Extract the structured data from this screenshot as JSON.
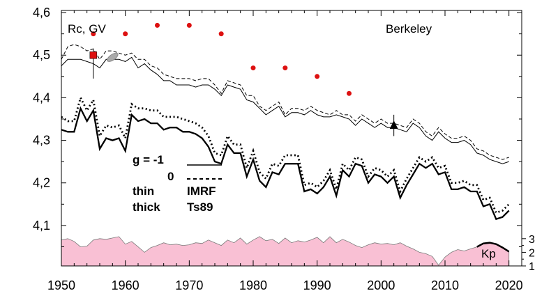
{
  "chart_data": {
    "type": "line",
    "title": "Berkeley",
    "ylabel": "Rc, GV",
    "xlim": [
      1950,
      2022
    ],
    "ylim": [
      4.005,
      4.605
    ],
    "x_ticks": [
      1950,
      1960,
      1970,
      1980,
      1990,
      2000,
      2010,
      2020
    ],
    "y_ticks": [
      {
        "value": 4.1,
        "label": "4,1"
      },
      {
        "value": 4.2,
        "label": "4,2"
      },
      {
        "value": 4.3,
        "label": "4,3"
      },
      {
        "value": 4.4,
        "label": "4,4"
      },
      {
        "value": 4.5,
        "label": "4,5"
      },
      {
        "value": 4.6,
        "label": "4,6"
      }
    ],
    "x": [
      1950,
      1951,
      1952,
      1953,
      1954,
      1955,
      1956,
      1957,
      1958,
      1959,
      1960,
      1961,
      1962,
      1963,
      1964,
      1965,
      1966,
      1967,
      1968,
      1969,
      1970,
      1971,
      1972,
      1973,
      1974,
      1975,
      1976,
      1977,
      1978,
      1979,
      1980,
      1981,
      1982,
      1983,
      1984,
      1985,
      1986,
      1987,
      1988,
      1989,
      1990,
      1991,
      1992,
      1993,
      1994,
      1995,
      1996,
      1997,
      1998,
      1999,
      2000,
      2001,
      2002,
      2003,
      2004,
      2005,
      2006,
      2007,
      2008,
      2009,
      2010,
      2011,
      2012,
      2013,
      2014,
      2015,
      2016,
      2017,
      2018,
      2019,
      2020
    ],
    "series": [
      {
        "style": "thin-solid",
        "values": [
          4.475,
          4.49,
          4.49,
          4.49,
          4.485,
          4.48,
          4.47,
          4.49,
          4.49,
          4.49,
          4.485,
          4.495,
          4.47,
          4.48,
          4.465,
          4.455,
          4.44,
          4.44,
          4.43,
          4.43,
          4.43,
          4.425,
          4.43,
          4.43,
          4.42,
          4.405,
          4.43,
          4.425,
          4.42,
          4.395,
          4.39,
          4.375,
          4.36,
          4.37,
          4.38,
          4.355,
          4.365,
          4.365,
          4.36,
          4.37,
          4.36,
          4.355,
          4.355,
          4.36,
          4.355,
          4.35,
          4.335,
          4.35,
          4.34,
          4.33,
          4.34,
          4.33,
          4.33,
          4.325,
          4.32,
          4.34,
          4.33,
          4.31,
          4.3,
          4.32,
          4.305,
          4.295,
          4.295,
          4.3,
          4.29,
          4.27,
          4.265,
          4.255,
          4.25,
          4.245,
          4.25
        ]
      },
      {
        "style": "thin-dashed",
        "values": [
          4.49,
          4.52,
          4.525,
          4.52,
          4.51,
          4.515,
          4.49,
          4.51,
          4.51,
          4.505,
          4.5,
          4.505,
          4.49,
          4.49,
          4.475,
          4.47,
          4.455,
          4.45,
          4.445,
          4.445,
          4.445,
          4.44,
          4.445,
          4.445,
          4.43,
          4.41,
          4.44,
          4.435,
          4.43,
          4.405,
          4.405,
          4.38,
          4.37,
          4.38,
          4.39,
          4.36,
          4.375,
          4.375,
          4.37,
          4.38,
          4.37,
          4.365,
          4.36,
          4.37,
          4.36,
          4.36,
          4.345,
          4.36,
          4.35,
          4.34,
          4.35,
          4.34,
          4.34,
          4.335,
          4.33,
          4.35,
          4.34,
          4.32,
          4.31,
          4.33,
          4.315,
          4.305,
          4.305,
          4.31,
          4.3,
          4.28,
          4.275,
          4.265,
          4.26,
          4.255,
          4.26
        ]
      },
      {
        "style": "thick-solid",
        "values": [
          4.325,
          4.32,
          4.32,
          4.375,
          4.345,
          4.37,
          4.28,
          4.305,
          4.3,
          4.305,
          4.275,
          4.36,
          4.345,
          4.35,
          4.34,
          4.34,
          4.325,
          4.33,
          4.33,
          4.32,
          4.32,
          4.315,
          4.305,
          4.285,
          4.25,
          4.245,
          4.29,
          4.27,
          4.27,
          4.215,
          4.255,
          4.205,
          4.19,
          4.225,
          4.22,
          4.245,
          4.245,
          4.245,
          4.18,
          4.185,
          4.175,
          4.19,
          4.215,
          4.17,
          4.23,
          4.215,
          4.245,
          4.24,
          4.2,
          4.22,
          4.215,
          4.2,
          4.215,
          4.165,
          4.195,
          4.22,
          4.245,
          4.235,
          4.245,
          4.22,
          4.225,
          4.185,
          4.185,
          4.19,
          4.18,
          4.18,
          4.145,
          4.15,
          4.115,
          4.12,
          4.135
        ]
      },
      {
        "style": "thick-dotted",
        "values": [
          4.355,
          4.345,
          4.345,
          4.4,
          4.37,
          4.395,
          4.31,
          4.335,
          4.33,
          4.335,
          4.305,
          4.385,
          4.375,
          4.375,
          4.37,
          4.37,
          4.355,
          4.355,
          4.355,
          4.35,
          4.345,
          4.34,
          4.33,
          4.31,
          4.27,
          4.265,
          4.31,
          4.29,
          4.29,
          4.235,
          4.275,
          4.225,
          4.21,
          4.245,
          4.24,
          4.265,
          4.265,
          4.265,
          4.195,
          4.2,
          4.19,
          4.205,
          4.23,
          4.185,
          4.245,
          4.23,
          4.26,
          4.255,
          4.215,
          4.235,
          4.23,
          4.215,
          4.23,
          4.18,
          4.21,
          4.235,
          4.26,
          4.25,
          4.26,
          4.235,
          4.24,
          4.2,
          4.2,
          4.205,
          4.195,
          4.195,
          4.16,
          4.165,
          4.13,
          4.135,
          4.15
        ]
      }
    ],
    "measured_points": {
      "x": [
        1955,
        1960,
        1965,
        1970,
        1975,
        1980,
        1985,
        1990,
        1995
      ],
      "y": [
        4.55,
        4.55,
        4.57,
        4.57,
        4.55,
        4.47,
        4.47,
        4.45,
        4.41
      ],
      "color": "#dd1111"
    },
    "red_square": {
      "x": 1955,
      "y": 4.5,
      "err_low": 4.445,
      "err_high": 4.515,
      "color": "#dd1111"
    },
    "black_triangle": {
      "x": 2002,
      "y": 4.335,
      "err_low": 4.31,
      "err_high": 4.36
    },
    "gray_ellipse": {
      "x": 1958,
      "y": 4.495
    },
    "kp": {
      "label": "Kp",
      "ticks": [
        1,
        2,
        3
      ],
      "range": [
        1,
        3.4
      ],
      "fill": "#f9c0d4",
      "values": [
        2.9,
        3.0,
        2.8,
        2.4,
        2.45,
        2.9,
        3.0,
        2.95,
        3.05,
        3.15,
        2.6,
        2.8,
        2.4,
        2.0,
        2.35,
        2.5,
        2.7,
        2.55,
        2.6,
        2.5,
        2.55,
        2.7,
        2.65,
        2.9,
        2.7,
        2.5,
        2.9,
        2.7,
        3.05,
        2.6,
        2.9,
        3.15,
        2.85,
        2.95,
        2.65,
        3.05,
        2.7,
        2.85,
        2.75,
        2.9,
        3.1,
        2.7,
        3.15,
        2.7,
        2.95,
        2.75,
        2.5,
        2.35,
        2.55,
        2.7,
        2.6,
        2.65,
        2.55,
        2.7,
        2.45,
        2.25,
        2.0,
        1.9,
        1.7,
        1.05,
        1.65,
        2.0,
        2.2,
        2.1,
        2.25,
        2.4,
        2.65,
        2.7,
        2.6,
        2.35,
        2.05
      ]
    },
    "legend": {
      "g_label": "g  = -1",
      "g_zero": "0",
      "thin_label": "thin",
      "thick_label": "thick",
      "model_thin": "IMRF",
      "model_thick": "Ts89"
    },
    "grid": false
  }
}
